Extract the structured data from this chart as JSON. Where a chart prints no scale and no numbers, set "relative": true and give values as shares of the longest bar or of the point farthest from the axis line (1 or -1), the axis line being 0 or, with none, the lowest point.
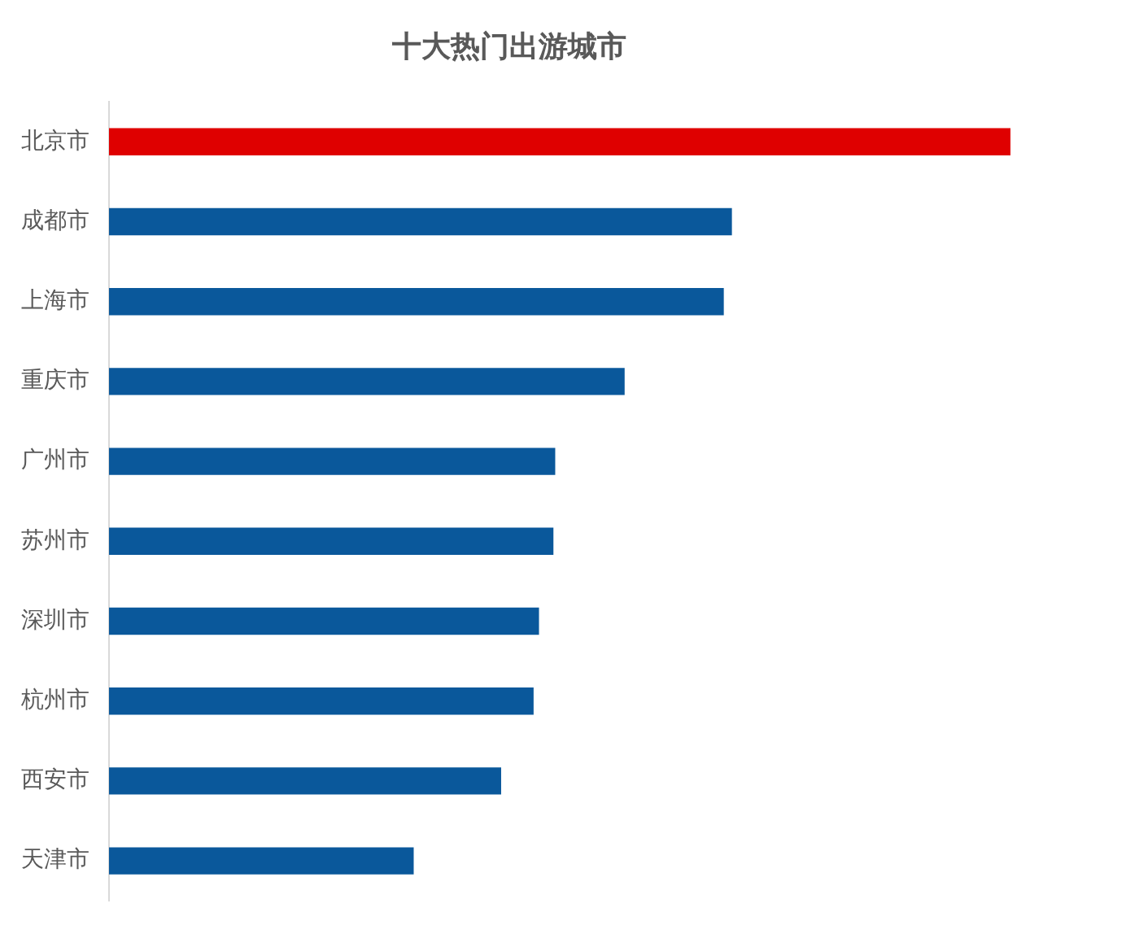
{
  "chart_data": {
    "type": "bar",
    "title": "十大热门出游城市",
    "orientation": "horizontal",
    "relative": true,
    "categories": [
      "北京市",
      "成都市",
      "上海市",
      "重庆市",
      "广州市",
      "苏州市",
      "深圳市",
      "杭州市",
      "西安市",
      "天津市"
    ],
    "values": [
      1,
      0.691,
      0.682,
      0.572,
      0.495,
      0.493,
      0.477,
      0.471,
      0.435,
      0.338
    ],
    "colors": [
      "#df0000",
      "#0a589b",
      "#0a589b",
      "#0a589b",
      "#0a589b",
      "#0a589b",
      "#0a589b",
      "#0a589b",
      "#0a589b",
      "#0a589b"
    ]
  }
}
